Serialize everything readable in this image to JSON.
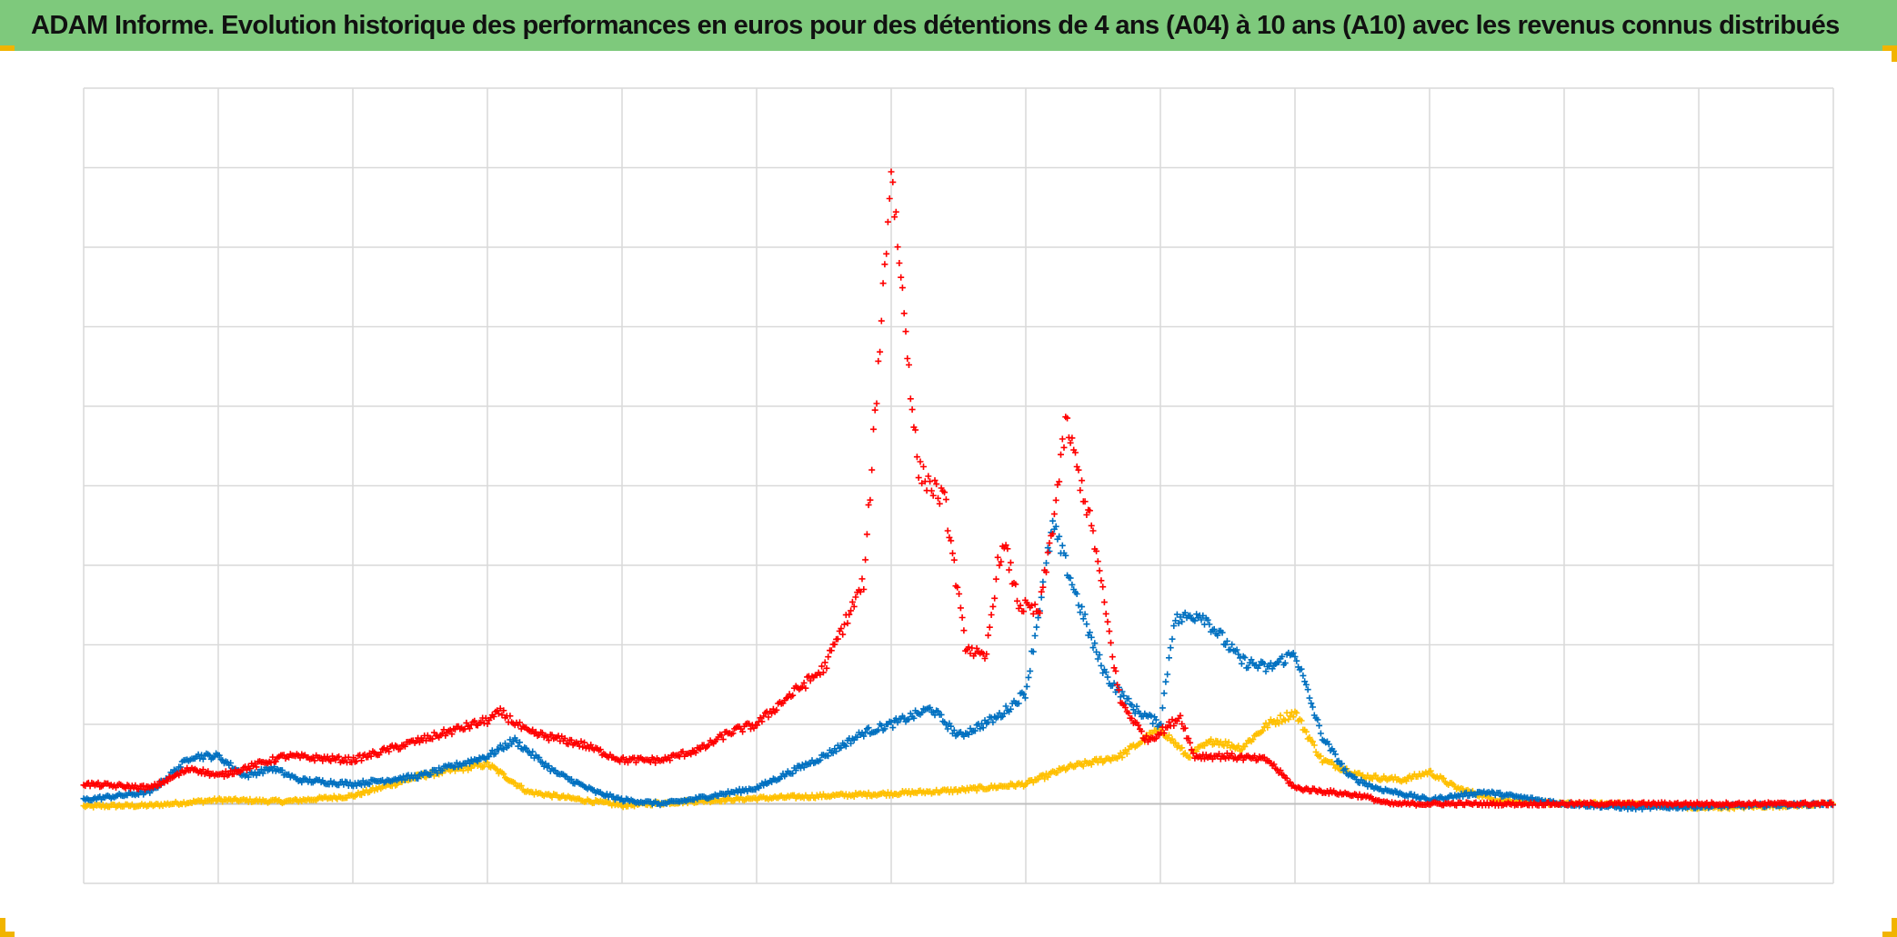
{
  "title": "ADAM Informe. Evolution historique des performances en euros pour des détentions de 4 ans (A04) à 10 ans (A10) avec les revenus connus distribués",
  "colors": {
    "title_background": "#7ec97c",
    "corner_marks": "#f1b400",
    "grid": "#d9d9d9",
    "zero_line": "#bfbfbf"
  },
  "chart_data": {
    "type": "scatter",
    "marker": "plus",
    "title": "ADAM Informe. Evolution historique des performances en euros pour des détentions de 4 ans (A04) à 10 ans (A10) avec les revenus connus distribués",
    "xlabel": "",
    "ylabel": "",
    "x_tick_labels": [],
    "y_tick_labels": [],
    "xlim": [
      0,
      13
    ],
    "ylim": [
      -1,
      9
    ],
    "grid": true,
    "legend": "none",
    "series": [
      {
        "color": "#ffc000",
        "x": [
          0,
          0.5,
          1,
          1.5,
          2,
          2.5,
          3,
          3.3,
          3.7,
          4,
          4.5,
          5,
          5.5,
          6,
          6.5,
          7,
          7.3,
          7.7,
          8,
          8.2,
          8.4,
          8.6,
          8.8,
          9,
          9.2,
          9.5,
          9.8,
          10,
          10.2,
          10.5,
          11,
          11.5,
          12,
          12.5,
          13
        ],
        "y": [
          -0.03,
          -0.02,
          0.05,
          0.03,
          0.1,
          0.35,
          0.5,
          0.15,
          0.05,
          -0.02,
          0.03,
          0.07,
          0.1,
          0.13,
          0.17,
          0.25,
          0.45,
          0.6,
          0.95,
          0.6,
          0.8,
          0.7,
          1.0,
          1.15,
          0.55,
          0.35,
          0.3,
          0.4,
          0.2,
          0.05,
          0.0,
          0.0,
          -0.05,
          -0.03,
          0.0
        ]
      },
      {
        "color": "#0070c0",
        "x": [
          0,
          0.5,
          0.8,
          1.0,
          1.2,
          1.4,
          1.6,
          2.0,
          2.5,
          3.0,
          3.2,
          3.5,
          3.8,
          4.0,
          4.3,
          4.5,
          5.0,
          5.5,
          5.8,
          6.0,
          6.3,
          6.5,
          6.8,
          7.0,
          7.2,
          7.4,
          7.5,
          7.6,
          7.8,
          8.0,
          8.1,
          8.3,
          8.6,
          8.8,
          9.0,
          9.2,
          9.4,
          9.6,
          10.0,
          10.4,
          11.0,
          11.5,
          13
        ],
        "y": [
          0.05,
          0.15,
          0.6,
          0.6,
          0.35,
          0.45,
          0.3,
          0.25,
          0.35,
          0.6,
          0.8,
          0.4,
          0.15,
          0.05,
          0.0,
          0.05,
          0.2,
          0.6,
          0.9,
          1.0,
          1.2,
          0.85,
          1.1,
          1.4,
          3.5,
          2.5,
          2.0,
          1.6,
          1.2,
          1.0,
          2.3,
          2.4,
          1.8,
          1.7,
          1.9,
          0.85,
          0.35,
          0.2,
          0.05,
          0.15,
          0.0,
          -0.05,
          0.0
        ]
      },
      {
        "color": "#ff0000",
        "x": [
          0,
          0.5,
          0.8,
          1.0,
          1.5,
          2.0,
          2.5,
          3.0,
          3.1,
          3.3,
          3.7,
          4.0,
          4.3,
          4.6,
          4.8,
          5.0,
          5.2,
          5.5,
          5.8,
          6.0,
          6.2,
          6.4,
          6.55,
          6.7,
          6.8,
          6.85,
          6.95,
          7.1,
          7.2,
          7.3,
          7.5,
          7.7,
          7.9,
          8.0,
          8.15,
          8.25,
          8.5,
          8.8,
          9.0,
          9.5,
          9.7,
          10.0,
          10.5,
          13
        ],
        "y": [
          0.25,
          0.2,
          0.45,
          0.35,
          0.6,
          0.55,
          0.8,
          1.05,
          1.15,
          0.9,
          0.75,
          0.55,
          0.55,
          0.7,
          0.9,
          1.0,
          1.3,
          1.7,
          2.8,
          8.0,
          4.2,
          3.8,
          2.0,
          1.8,
          3.1,
          3.2,
          2.5,
          2.4,
          3.5,
          4.8,
          3.4,
          1.3,
          0.8,
          0.9,
          1.1,
          0.6,
          0.6,
          0.55,
          0.2,
          0.1,
          0.0,
          0.0,
          0.0,
          0.0
        ]
      }
    ]
  }
}
